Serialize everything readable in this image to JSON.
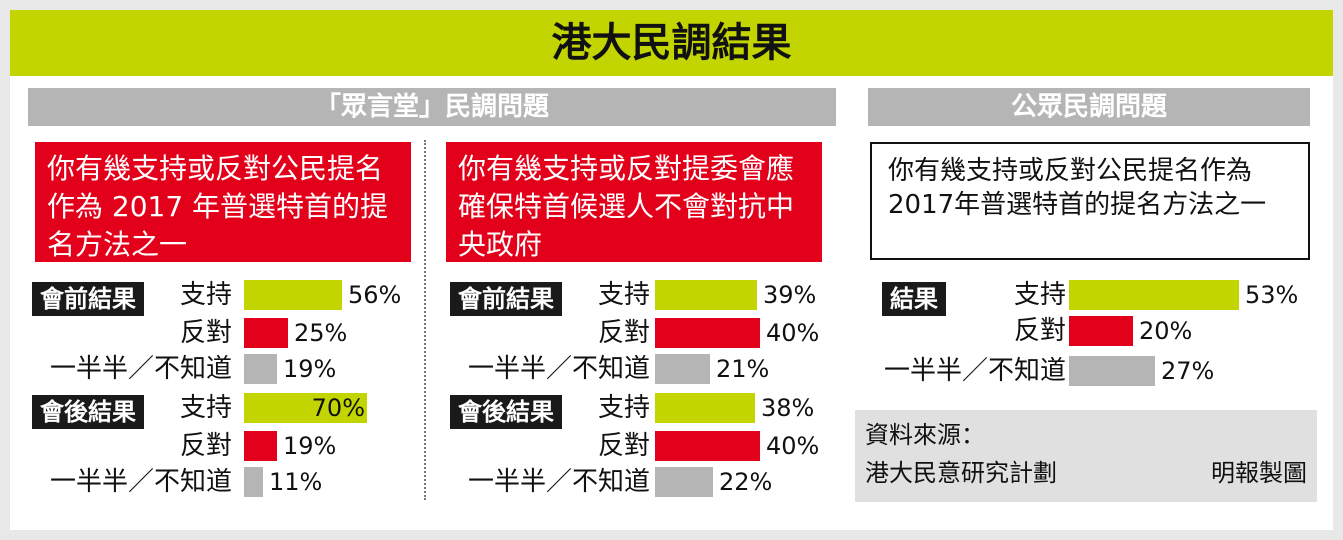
{
  "title": "港大民調結果",
  "left_section": {
    "heading": "「眾言堂」民調問題"
  },
  "right_section": {
    "heading": "公眾民調問題"
  },
  "question_1": "你有幾支持或反對公民提名作為 2017 年普選特首的提名方法之一",
  "question_2": "你有幾支持或反對提委會應確保特首候選人不會對抗中央政府",
  "question_3": "你有幾支持或反對公民提名作為2017年普選特首的提名方法之一",
  "source": {
    "label": "資料來源：",
    "org": "港大民意研究計劃",
    "credit": "明報製圖"
  },
  "colors": {
    "support": "#c3d500",
    "oppose": "#e2001a",
    "unsure": "#b5b5b5",
    "title_bg": "#c3d500"
  },
  "chart_data": [
    {
      "type": "bar",
      "orientation": "horizontal",
      "unit": "%",
      "categories": [
        "支持",
        "反對",
        "一半半／不知道"
      ],
      "series": [
        {
          "name": "會前結果",
          "values": [
            56,
            25,
            19
          ]
        },
        {
          "name": "會後結果",
          "values": [
            70,
            19,
            11
          ]
        }
      ]
    },
    {
      "type": "bar",
      "orientation": "horizontal",
      "unit": "%",
      "categories": [
        "支持",
        "反對",
        "一半半／不知道"
      ],
      "series": [
        {
          "name": "會前結果",
          "values": [
            39,
            40,
            21
          ]
        },
        {
          "name": "會後結果",
          "values": [
            38,
            40,
            22
          ]
        }
      ]
    },
    {
      "type": "bar",
      "orientation": "horizontal",
      "unit": "%",
      "categories": [
        "支持",
        "反對",
        "一半半／不知道"
      ],
      "series": [
        {
          "name": "結果",
          "values": [
            53,
            20,
            27
          ]
        }
      ]
    }
  ]
}
